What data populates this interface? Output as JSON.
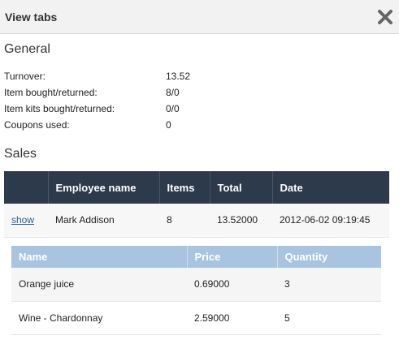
{
  "dialog": {
    "title": "View tabs",
    "close_icon": "close-x-icon"
  },
  "general": {
    "title": "General",
    "stats": [
      {
        "label": "Turnover:",
        "value": "13.52"
      },
      {
        "label": "Item bought/returned:",
        "value": "8/0"
      },
      {
        "label": "Item kits bought/returned:",
        "value": "0/0"
      },
      {
        "label": "Coupons used:",
        "value": "0"
      }
    ]
  },
  "sales": {
    "title": "Sales",
    "columns": [
      "",
      "Employee name",
      "Items",
      "Total",
      "Date"
    ],
    "rows": [
      {
        "action": "show",
        "employee": "Mark Addison",
        "items": "8",
        "total": "13.52000",
        "date": "2012-06-02 09:19:45"
      }
    ],
    "detail": {
      "columns": [
        "Name",
        "Price",
        "Quantity"
      ],
      "rows": [
        {
          "name": "Orange juice",
          "price": "0.69000",
          "quantity": "3"
        },
        {
          "name": "Wine - Chardonnay",
          "price": "2.59000",
          "quantity": "5"
        }
      ]
    }
  },
  "colors": {
    "header_dark": "#2d3a4b",
    "header_light": "#a8c4e0",
    "link": "#2a5d9f"
  }
}
